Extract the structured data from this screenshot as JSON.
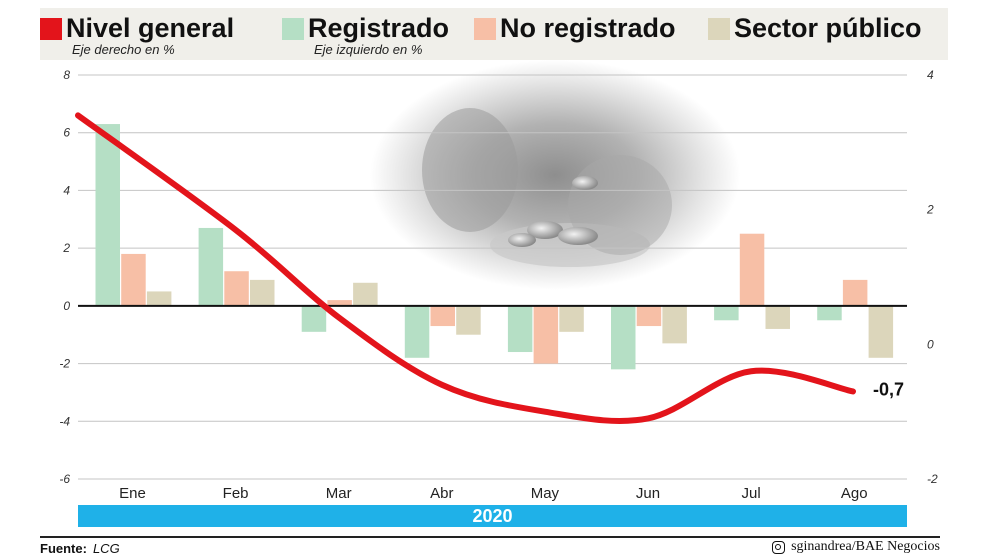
{
  "legend": {
    "items": [
      {
        "label": "Nivel general",
        "sub": "Eje derecho en %",
        "color": "#e3141b"
      },
      {
        "label": "Registrado",
        "sub": "Eje izquierdo en %",
        "color": "#b5dfc5"
      },
      {
        "label": "No registrado",
        "sub": "",
        "color": "#f7bfa6"
      },
      {
        "label": "Sector público",
        "sub": "",
        "color": "#dcd6bb"
      }
    ]
  },
  "footer": {
    "source_key": "Fuente:",
    "source_value": "LCG",
    "credit": "sginandrea/BAE Negocios",
    "credit_icon": "instagram-icon"
  },
  "chart_data": {
    "type": "bar",
    "categories": [
      "Ene",
      "Feb",
      "Mar",
      "Abr",
      "May",
      "Jun",
      "Jul",
      "Ago"
    ],
    "period_label": "2020",
    "left_axis": {
      "ylim": [
        -6,
        8
      ],
      "ticks": [
        "8",
        "6",
        "4",
        "2",
        "0",
        "-2",
        "-4",
        "-6"
      ]
    },
    "right_axis": {
      "ylim": [
        -2,
        4
      ],
      "ticks": [
        "4",
        "2",
        "0",
        "-2"
      ]
    },
    "grid": true,
    "series": [
      {
        "name": "Registrado",
        "axis": "left",
        "color": "#b5dfc5",
        "values": [
          6.3,
          2.7,
          -0.9,
          -1.8,
          -1.6,
          -2.2,
          -0.5,
          -0.5
        ]
      },
      {
        "name": "No registrado",
        "axis": "left",
        "color": "#f7bfa6",
        "values": [
          1.8,
          1.2,
          0.2,
          -0.7,
          -2.0,
          -0.7,
          2.5,
          0.9
        ]
      },
      {
        "name": "Sector público",
        "axis": "left",
        "color": "#dcd6bb",
        "values": [
          0.5,
          0.9,
          0.8,
          -1.0,
          -0.9,
          -1.3,
          -0.8,
          -1.8
        ]
      },
      {
        "name": "Nivel general",
        "axis": "right",
        "type": "line",
        "color": "#e3141b",
        "values": [
          3.4,
          1.7,
          0.4,
          -0.6,
          -1.0,
          -1.1,
          -0.4,
          -0.7
        ]
      }
    ],
    "annotation": "-0,7"
  }
}
